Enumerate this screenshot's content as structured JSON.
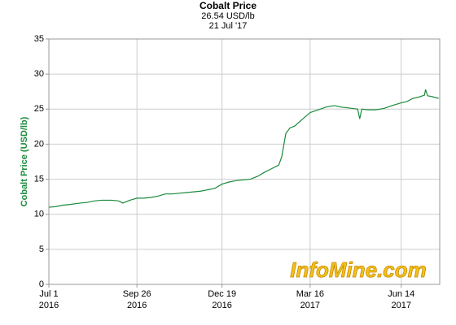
{
  "chart_data": {
    "type": "line",
    "title": "Cobalt Price",
    "subtitle": "26.54 USD/lb",
    "date_label": "21 Jul '17",
    "y_label": "Cobalt Price (USD/lb)",
    "watermark": "InfoMine.com",
    "x": [
      "2016-07-01",
      "2016-07-08",
      "2016-07-15",
      "2016-07-22",
      "2016-08-01",
      "2016-08-08",
      "2016-08-15",
      "2016-08-22",
      "2016-09-01",
      "2016-09-08",
      "2016-09-12",
      "2016-09-19",
      "2016-09-26",
      "2016-10-03",
      "2016-10-10",
      "2016-10-17",
      "2016-10-24",
      "2016-10-31",
      "2016-11-07",
      "2016-11-14",
      "2016-11-21",
      "2016-11-28",
      "2016-12-05",
      "2016-12-12",
      "2016-12-19",
      "2016-12-26",
      "2017-01-02",
      "2017-01-09",
      "2017-01-16",
      "2017-01-23",
      "2017-01-30",
      "2017-02-06",
      "2017-02-10",
      "2017-02-13",
      "2017-02-16",
      "2017-02-20",
      "2017-02-24",
      "2017-03-01",
      "2017-03-08",
      "2017-03-16",
      "2017-03-24",
      "2017-04-01",
      "2017-04-09",
      "2017-04-15",
      "2017-04-21",
      "2017-04-27",
      "2017-05-02",
      "2017-05-04",
      "2017-05-06",
      "2017-05-12",
      "2017-05-20",
      "2017-05-28",
      "2017-06-05",
      "2017-06-14",
      "2017-06-20",
      "2017-06-25",
      "2017-07-01",
      "2017-07-07",
      "2017-07-08",
      "2017-07-10",
      "2017-07-14",
      "2017-07-19",
      "2017-07-21"
    ],
    "series": [
      {
        "name": "Cobalt Price",
        "color": "#1a8a3c",
        "values": [
          11.0,
          11.1,
          11.3,
          11.4,
          11.6,
          11.7,
          11.9,
          12.0,
          12.0,
          11.9,
          11.6,
          12.0,
          12.3,
          12.3,
          12.4,
          12.6,
          12.9,
          12.9,
          13.0,
          13.1,
          13.2,
          13.3,
          13.5,
          13.7,
          14.3,
          14.6,
          14.8,
          14.9,
          15.0,
          15.4,
          16.0,
          16.5,
          16.8,
          17.0,
          18.2,
          21.5,
          22.3,
          22.6,
          23.5,
          24.5,
          24.9,
          25.3,
          25.5,
          25.3,
          25.2,
          25.1,
          25.0,
          23.6,
          25.0,
          24.9,
          24.9,
          25.1,
          25.5,
          25.9,
          26.1,
          26.5,
          26.7,
          27.0,
          27.8,
          26.9,
          26.8,
          26.6,
          26.54
        ]
      }
    ],
    "xlim": [
      "2016-07-01",
      "2017-07-22"
    ],
    "xticks": [
      {
        "value": "2016-07-01",
        "label": [
          "Jul 1",
          "2016"
        ]
      },
      {
        "value": "2016-09-26",
        "label": [
          "Sep 26",
          "2016"
        ]
      },
      {
        "value": "2016-12-19",
        "label": [
          "Dec 19",
          "2016"
        ]
      },
      {
        "value": "2017-03-16",
        "label": [
          "Mar 16",
          "2017"
        ]
      },
      {
        "value": "2017-06-14",
        "label": [
          "Jun 14",
          "2017"
        ]
      }
    ],
    "ylim": [
      0,
      35
    ],
    "yticks": [
      0,
      5,
      10,
      15,
      20,
      25,
      30,
      35
    ],
    "grid": true
  }
}
